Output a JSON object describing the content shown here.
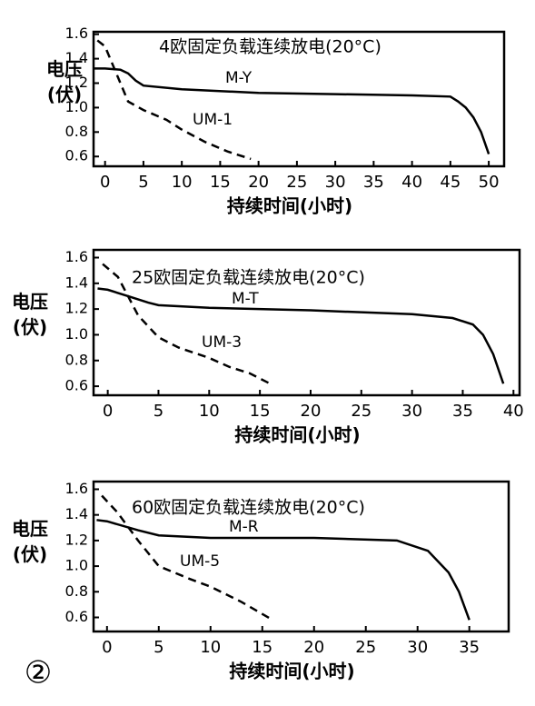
{
  "chart_data": [
    {
      "type": "line",
      "title": "4欧固定负载连续放电(20°C)",
      "x_label": "持续时间(小时)",
      "y_label": "电压(伏)",
      "xlim": [
        -1.5,
        52
      ],
      "xticks": [
        0,
        5,
        10,
        15,
        20,
        25,
        30,
        35,
        40,
        45,
        50
      ],
      "ylim": [
        0.52,
        1.62
      ],
      "yticks": [
        0.6,
        0.8,
        {
          "value": 1,
          "label": "1.0"
        },
        1.2,
        1.4,
        1.6
      ],
      "grid": false,
      "series": [
        {
          "name": "M-Y",
          "color": "#000000",
          "linestyle": "solid",
          "x": [
            -1.5,
            0,
            2,
            3,
            4,
            5,
            10,
            20,
            30,
            40,
            45,
            46,
            47,
            48,
            49,
            50
          ],
          "values": [
            1.32,
            1.32,
            1.31,
            1.28,
            1.22,
            1.18,
            1.15,
            1.12,
            1.11,
            1.1,
            1.09,
            1.05,
            1.0,
            0.92,
            0.8,
            0.62
          ]
        },
        {
          "name": "UM-1",
          "color": "#000000",
          "linestyle": "dashed",
          "x": [
            -1,
            0,
            1,
            2,
            3,
            5,
            8,
            10,
            13,
            16,
            19
          ],
          "values": [
            1.55,
            1.5,
            1.35,
            1.2,
            1.05,
            0.98,
            0.9,
            0.82,
            0.72,
            0.64,
            0.58
          ]
        }
      ]
    },
    {
      "type": "line",
      "title": "25欧固定负载连续放电(20°C)",
      "x_label": "持续时间(小时)",
      "y_label": "电压(伏)",
      "xlim": [
        -1.4,
        40.6
      ],
      "xticks": [
        0,
        5,
        10,
        15,
        20,
        25,
        30,
        35,
        40
      ],
      "ylim": [
        0.53,
        1.66
      ],
      "yticks": [
        0.6,
        0.8,
        {
          "value": 1,
          "label": "1.0"
        },
        1.2,
        1.4,
        1.6
      ],
      "grid": false,
      "series": [
        {
          "name": "M-T",
          "color": "#000000",
          "linestyle": "solid",
          "x": [
            -1,
            0,
            2,
            4,
            5,
            10,
            20,
            30,
            34,
            36,
            37,
            38,
            39
          ],
          "values": [
            1.36,
            1.35,
            1.3,
            1.25,
            1.23,
            1.21,
            1.19,
            1.16,
            1.13,
            1.08,
            1.0,
            0.85,
            0.62
          ]
        },
        {
          "name": "UM-3",
          "color": "#000000",
          "linestyle": "dashed",
          "x": [
            -0.5,
            1,
            2,
            3,
            5,
            7,
            10,
            12,
            14,
            16
          ],
          "values": [
            1.55,
            1.45,
            1.3,
            1.15,
            0.98,
            0.9,
            0.82,
            0.75,
            0.7,
            0.62
          ]
        }
      ]
    },
    {
      "type": "line",
      "title": "60欧固定负载连续放电(20°C)",
      "x_label": "持续时间(小时)",
      "y_label": "电压(伏)",
      "xlim": [
        -1.3,
        38.8
      ],
      "xticks": [
        0,
        5,
        10,
        15,
        20,
        25,
        30,
        35
      ],
      "ylim": [
        0.49,
        1.66
      ],
      "yticks": [
        0.6,
        0.8,
        {
          "value": 1,
          "label": "1.0"
        },
        1.2,
        1.4,
        1.6
      ],
      "grid": false,
      "series": [
        {
          "name": "M-R",
          "color": "#000000",
          "linestyle": "solid",
          "x": [
            -1,
            0,
            3,
            5,
            10,
            20,
            28,
            31,
            33,
            34,
            35
          ],
          "values": [
            1.36,
            1.35,
            1.28,
            1.24,
            1.22,
            1.22,
            1.2,
            1.12,
            0.95,
            0.8,
            0.58
          ]
        },
        {
          "name": "UM-5",
          "color": "#000000",
          "linestyle": "dashed",
          "x": [
            -0.5,
            1,
            3,
            5,
            8,
            10,
            13,
            16
          ],
          "values": [
            1.55,
            1.42,
            1.2,
            1.0,
            0.9,
            0.84,
            0.72,
            0.58
          ]
        }
      ]
    }
  ],
  "figure_label": "②"
}
